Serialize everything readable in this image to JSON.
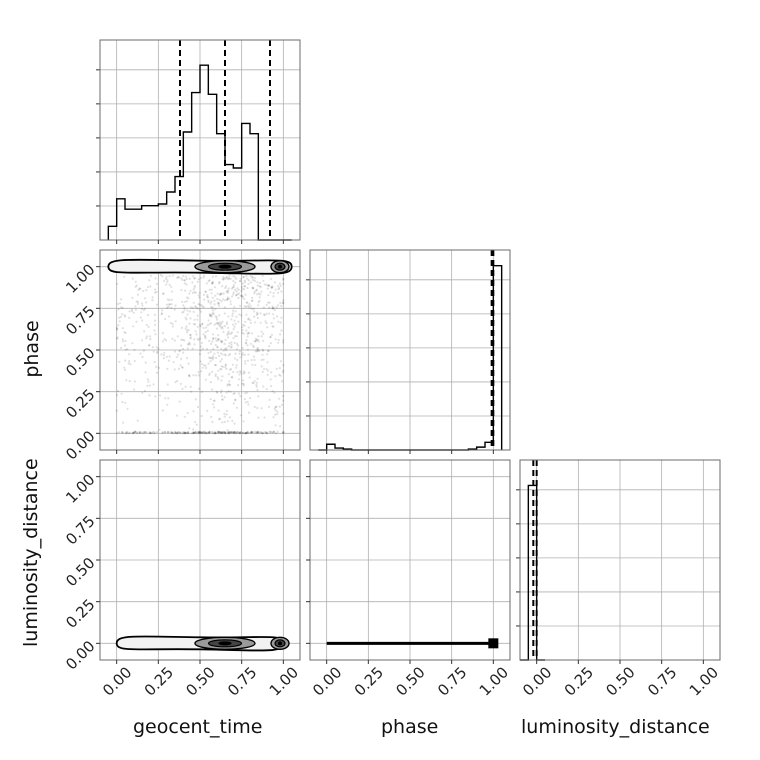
{
  "chart_data": {
    "type": "corner",
    "parameters": [
      "geocent_time",
      "phase",
      "luminosity_distance"
    ],
    "tick_labels": [
      "0.00",
      "0.25",
      "0.50",
      "0.75",
      "1.00"
    ],
    "axis_range": [
      -0.1,
      1.1
    ],
    "grid": true,
    "histograms": [
      {
        "parameter": "geocent_time",
        "bin_edges": [
          -0.05,
          0.0,
          0.05,
          0.1,
          0.15,
          0.2,
          0.25,
          0.3,
          0.35,
          0.4,
          0.45,
          0.5,
          0.55,
          0.6,
          0.65,
          0.7,
          0.75,
          0.8,
          0.85,
          0.9,
          0.95,
          1.0,
          1.05
        ],
        "counts": [
          8,
          24,
          18,
          18,
          20,
          20,
          21,
          28,
          37,
          63,
          86,
          102,
          85,
          62,
          44,
          42,
          68,
          62,
          0,
          0,
          0,
          0
        ],
        "quantiles": [
          0.38,
          0.65,
          0.92
        ],
        "ymax": 112
      },
      {
        "parameter": "phase",
        "bin_edges": [
          -0.05,
          0.0,
          0.05,
          0.1,
          0.15,
          0.2,
          0.25,
          0.3,
          0.35,
          0.4,
          0.45,
          0.5,
          0.55,
          0.6,
          0.65,
          0.7,
          0.75,
          0.8,
          0.85,
          0.9,
          0.95,
          1.0,
          1.05
        ],
        "counts": [
          0,
          3,
          1,
          0.5,
          0,
          0,
          0,
          0,
          0,
          0,
          0,
          0,
          0,
          0,
          0,
          0,
          0,
          0,
          0.5,
          1.5,
          4,
          96
        ],
        "quantiles": [
          0.99,
          1.0
        ],
        "ymax": 100
      },
      {
        "parameter": "luminosity_distance",
        "bin_edges": [
          -0.1,
          -0.05,
          0.0,
          0.05
        ],
        "counts": [
          0,
          100,
          0
        ],
        "quantiles": [
          -0.02,
          0.0
        ],
        "ymax": 110
      }
    ],
    "panels_2d": [
      {
        "x": "geocent_time",
        "y": "phase",
        "scatter": {
          "x_range": [
            0.0,
            1.0
          ],
          "y_range": [
            0.0,
            0.95
          ],
          "count": 1200,
          "dense_rows": [
            0.0
          ],
          "peak_x": 0.65
        },
        "contour_band": {
          "y": 1.0,
          "x_range": [
            -0.05,
            1.05
          ],
          "blob_centers": [
            0.65,
            0.98
          ]
        }
      },
      {
        "x": "geocent_time",
        "y": "luminosity_distance",
        "contour_band": {
          "y": 0.0,
          "x_range": [
            0.0,
            1.0
          ],
          "blob_centers": [
            0.65,
            0.98
          ]
        }
      },
      {
        "x": "phase",
        "y": "luminosity_distance",
        "contour_band": {
          "y": 0.0,
          "x_range": [
            0.0,
            1.0
          ],
          "blob_centers": [
            1.0
          ]
        }
      }
    ]
  }
}
